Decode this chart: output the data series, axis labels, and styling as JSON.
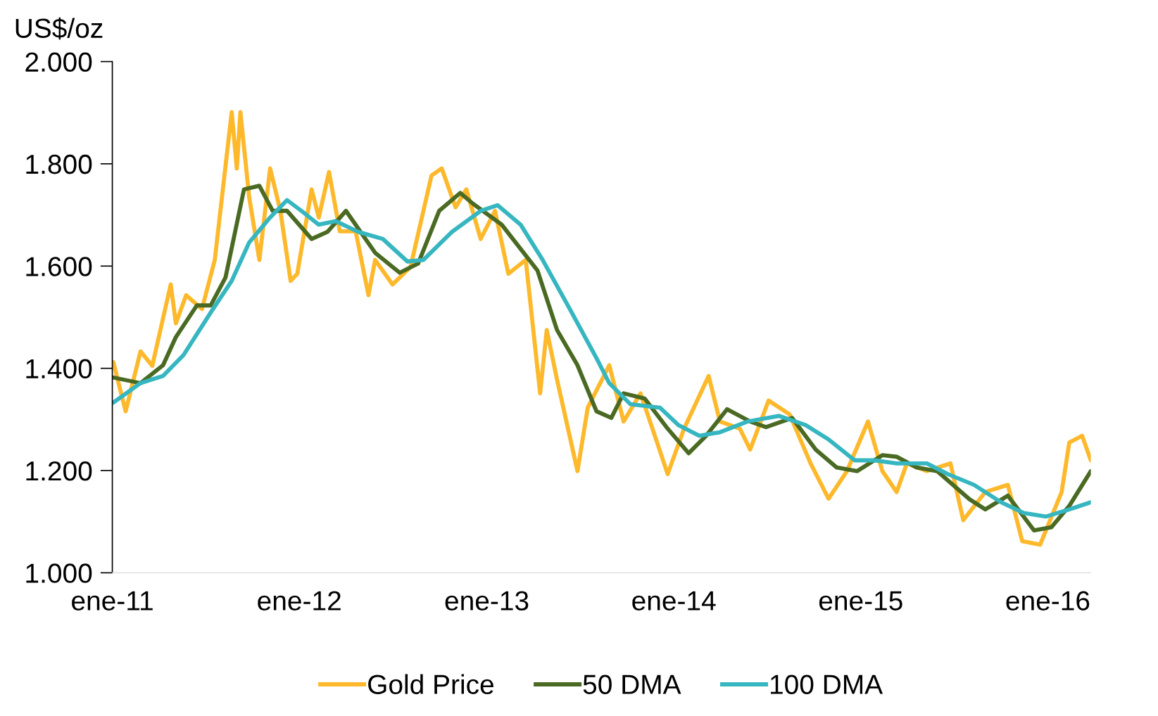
{
  "chart_data": {
    "type": "line",
    "ylabel": "US$/oz",
    "ylim": [
      1000,
      2000
    ],
    "yticks": [
      {
        "value": 1000,
        "label": "1.000"
      },
      {
        "value": 1200,
        "label": "1.200"
      },
      {
        "value": 1400,
        "label": "1.400"
      },
      {
        "value": 1600,
        "label": "1.600"
      },
      {
        "value": 1800,
        "label": "1.800"
      },
      {
        "value": 2000,
        "label": "2.000"
      }
    ],
    "xlim": [
      "2011-01-01",
      "2016-03-25"
    ],
    "xticks": [
      {
        "value": "2011-01-01",
        "label": "ene-11"
      },
      {
        "value": "2012-01-01",
        "label": "ene-12"
      },
      {
        "value": "2013-01-01",
        "label": "ene-13"
      },
      {
        "value": "2014-01-01",
        "label": "ene-14"
      },
      {
        "value": "2015-01-01",
        "label": "ene-15"
      },
      {
        "value": "2016-01-01",
        "label": "ene-16"
      }
    ],
    "legend": "bottom",
    "grid": false,
    "marker": "none",
    "line_style": "solid",
    "series": [
      {
        "name": "Gold Price",
        "color": "#fdb92b",
        "x": [
          "2011-01-03",
          "2011-01-27",
          "2011-02-25",
          "2011-03-20",
          "2011-04-25",
          "2011-05-05",
          "2011-05-25",
          "2011-06-25",
          "2011-07-20",
          "2011-08-22",
          "2011-09-01",
          "2011-09-08",
          "2011-09-25",
          "2011-10-15",
          "2011-11-05",
          "2011-11-25",
          "2011-12-15",
          "2011-12-28",
          "2012-01-25",
          "2012-02-08",
          "2012-02-28",
          "2012-03-20",
          "2012-04-20",
          "2012-05-15",
          "2012-05-28",
          "2012-07-01",
          "2012-08-05",
          "2012-09-15",
          "2012-10-05",
          "2012-11-01",
          "2012-11-22",
          "2012-12-20",
          "2013-01-17",
          "2013-02-12",
          "2013-03-18",
          "2013-04-15",
          "2013-04-28",
          "2013-05-18",
          "2013-06-27",
          "2013-07-17",
          "2013-08-28",
          "2013-09-25",
          "2013-10-28",
          "2013-11-25",
          "2013-12-20",
          "2014-01-21",
          "2014-03-10",
          "2014-04-01",
          "2014-05-10",
          "2014-05-30",
          "2014-07-05",
          "2014-08-15",
          "2014-09-25",
          "2014-10-30",
          "2014-12-05",
          "2015-01-15",
          "2015-02-12",
          "2015-03-12",
          "2015-04-01",
          "2015-05-10",
          "2015-06-25",
          "2015-07-20",
          "2015-09-01",
          "2015-10-15",
          "2015-11-12",
          "2015-12-17",
          "2016-01-28",
          "2016-02-12",
          "2016-03-08",
          "2016-03-25"
        ],
        "values": [
          1412,
          1316,
          1433,
          1405,
          1564,
          1488,
          1543,
          1516,
          1612,
          1901,
          1791,
          1901,
          1736,
          1612,
          1791,
          1708,
          1571,
          1585,
          1750,
          1695,
          1784,
          1668,
          1668,
          1543,
          1612,
          1564,
          1598,
          1777,
          1791,
          1715,
          1750,
          1653,
          1708,
          1585,
          1612,
          1351,
          1475,
          1378,
          1199,
          1323,
          1406,
          1296,
          1351,
          1268,
          1193,
          1282,
          1385,
          1296,
          1282,
          1241,
          1337,
          1310,
          1214,
          1145,
          1199,
          1296,
          1199,
          1158,
          1214,
          1199,
          1214,
          1103,
          1158,
          1172,
          1062,
          1055,
          1158,
          1255,
          1268,
          1220
        ]
      },
      {
        "name": "50 DMA",
        "color": "#4a6a23",
        "x": [
          "2011-01-03",
          "2011-02-25",
          "2011-04-10",
          "2011-05-05",
          "2011-06-15",
          "2011-07-12",
          "2011-08-10",
          "2011-09-15",
          "2011-10-15",
          "2011-11-10",
          "2011-12-08",
          "2012-01-25",
          "2012-02-25",
          "2012-04-01",
          "2012-05-28",
          "2012-07-15",
          "2012-08-20",
          "2012-09-30",
          "2012-11-10",
          "2012-12-05",
          "2013-01-30",
          "2013-04-10",
          "2013-05-18",
          "2013-06-27",
          "2013-08-03",
          "2013-09-01",
          "2013-09-25",
          "2013-11-05",
          "2013-12-20",
          "2014-01-30",
          "2014-03-05",
          "2014-04-15",
          "2014-05-30",
          "2014-06-30",
          "2014-08-20",
          "2014-10-05",
          "2014-11-15",
          "2014-12-25",
          "2015-02-12",
          "2015-03-12",
          "2015-04-20",
          "2015-05-30",
          "2015-08-01",
          "2015-09-01",
          "2015-10-15",
          "2015-12-05",
          "2016-01-08",
          "2016-02-12",
          "2016-03-25"
        ],
        "values": [
          1382,
          1371,
          1406,
          1461,
          1523,
          1523,
          1578,
          1750,
          1757,
          1708,
          1708,
          1653,
          1667,
          1708,
          1626,
          1587,
          1605,
          1708,
          1743,
          1722,
          1681,
          1591,
          1475,
          1406,
          1316,
          1303,
          1351,
          1341,
          1282,
          1234,
          1268,
          1320,
          1296,
          1285,
          1303,
          1241,
          1206,
          1199,
          1230,
          1227,
          1206,
          1199,
          1144,
          1124,
          1151,
          1083,
          1089,
          1131,
          1199
        ]
      },
      {
        "name": "100 DMA",
        "color": "#36b6c0",
        "x": [
          "2011-01-03",
          "2011-02-25",
          "2011-04-10",
          "2011-05-20",
          "2011-07-12",
          "2011-08-22",
          "2011-09-25",
          "2011-11-05",
          "2011-12-08",
          "2012-01-05",
          "2012-02-08",
          "2012-03-12",
          "2012-04-25",
          "2012-06-12",
          "2012-07-30",
          "2012-08-30",
          "2012-10-25",
          "2012-12-20",
          "2013-01-22",
          "2013-03-08",
          "2013-04-20",
          "2013-06-12",
          "2013-08-03",
          "2013-08-28",
          "2013-10-08",
          "2013-12-05",
          "2014-01-10",
          "2014-02-20",
          "2014-04-01",
          "2014-05-25",
          "2014-07-25",
          "2014-09-15",
          "2014-10-30",
          "2014-12-20",
          "2015-01-28",
          "2015-03-12",
          "2015-05-10",
          "2015-06-20",
          "2015-08-10",
          "2015-10-02",
          "2015-11-15",
          "2015-12-28",
          "2016-02-12",
          "2016-03-25"
        ],
        "values": [
          1333,
          1371,
          1385,
          1426,
          1509,
          1571,
          1646,
          1695,
          1729,
          1708,
          1681,
          1688,
          1667,
          1653,
          1609,
          1612,
          1667,
          1708,
          1719,
          1681,
          1612,
          1516,
          1420,
          1371,
          1330,
          1323,
          1289,
          1268,
          1275,
          1296,
          1307,
          1289,
          1261,
          1220,
          1220,
          1214,
          1214,
          1193,
          1172,
          1138,
          1117,
          1110,
          1124,
          1138
        ]
      }
    ]
  }
}
